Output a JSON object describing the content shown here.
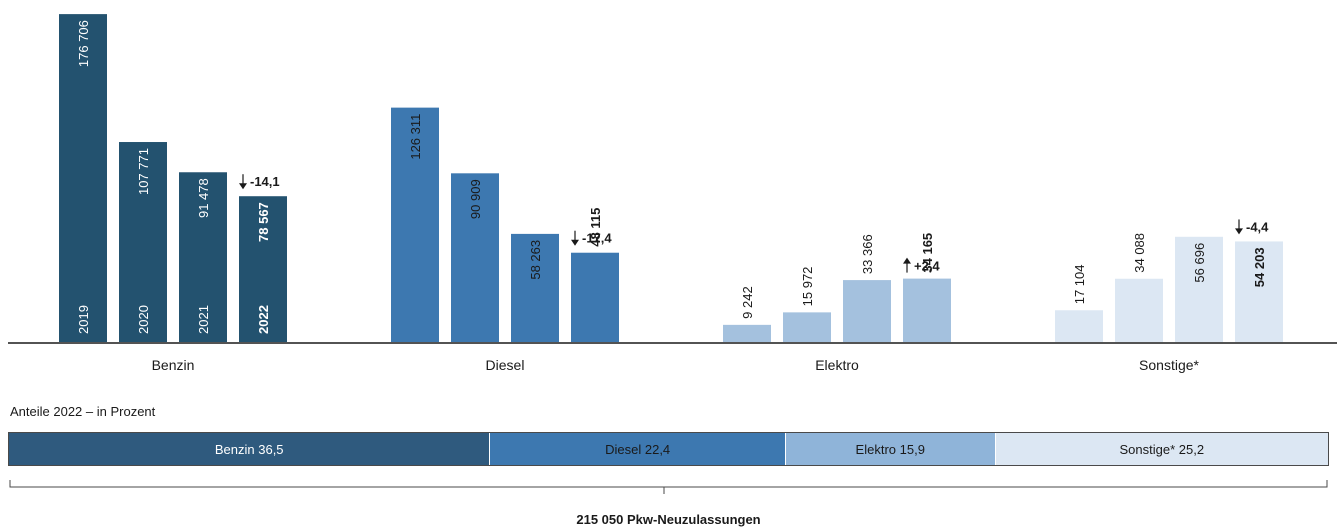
{
  "chart_data": {
    "type": "bar",
    "groups": [
      {
        "name": "Benzin",
        "color": "#23526f",
        "text_color": "#ffffff",
        "years": [
          "2019",
          "2020",
          "2021",
          "2022"
        ],
        "values": [
          176706,
          107771,
          91478,
          78567
        ],
        "labels": [
          "176 706",
          "107 771",
          "91 478",
          "78 567"
        ],
        "change": "-14,1",
        "change_dir": "down"
      },
      {
        "name": "Diesel",
        "color": "#3d78b0",
        "text_color": "#1a1a1a",
        "years": [],
        "values": [
          126311,
          90909,
          58263,
          48115
        ],
        "labels": [
          "126 311",
          "90 909",
          "58 263",
          "48 115"
        ],
        "change": "-17,4",
        "change_dir": "down"
      },
      {
        "name": "Elektro",
        "color": "#a4c1de",
        "text_color": "#1a1a1a",
        "years": [],
        "values": [
          9242,
          15972,
          33366,
          34165
        ],
        "labels": [
          "9 242",
          "15 972",
          "33 366",
          "34 165"
        ],
        "change": "+2,4",
        "change_dir": "up"
      },
      {
        "name": "Sonstige*",
        "color": "#dce7f3",
        "text_color": "#1a1a1a",
        "years": [],
        "values": [
          17104,
          34088,
          56696,
          54203
        ],
        "labels": [
          "17 104",
          "34 088",
          "56 696",
          "54 203"
        ],
        "change": "-4,4",
        "change_dir": "down"
      }
    ],
    "ylim": [
      0,
      180000
    ]
  },
  "shares": {
    "title": "Anteile 2022 – in Prozent",
    "segments": [
      {
        "label": "Benzin 36,5",
        "value": 36.5,
        "color": "#2f5a7e",
        "text_color": "#ffffff"
      },
      {
        "label": "Diesel 22,4",
        "value": 22.4,
        "color": "#3d78b0",
        "text_color": "#1a1a1a"
      },
      {
        "label": "Elektro 15,9",
        "value": 15.9,
        "color": "#8fb4d9",
        "text_color": "#1a1a1a"
      },
      {
        "label": "Sonstige* 25,2",
        "value": 25.2,
        "color": "#dce7f3",
        "text_color": "#1a1a1a"
      }
    ],
    "total_label": "215 050 Pkw-Neuzulassungen"
  }
}
